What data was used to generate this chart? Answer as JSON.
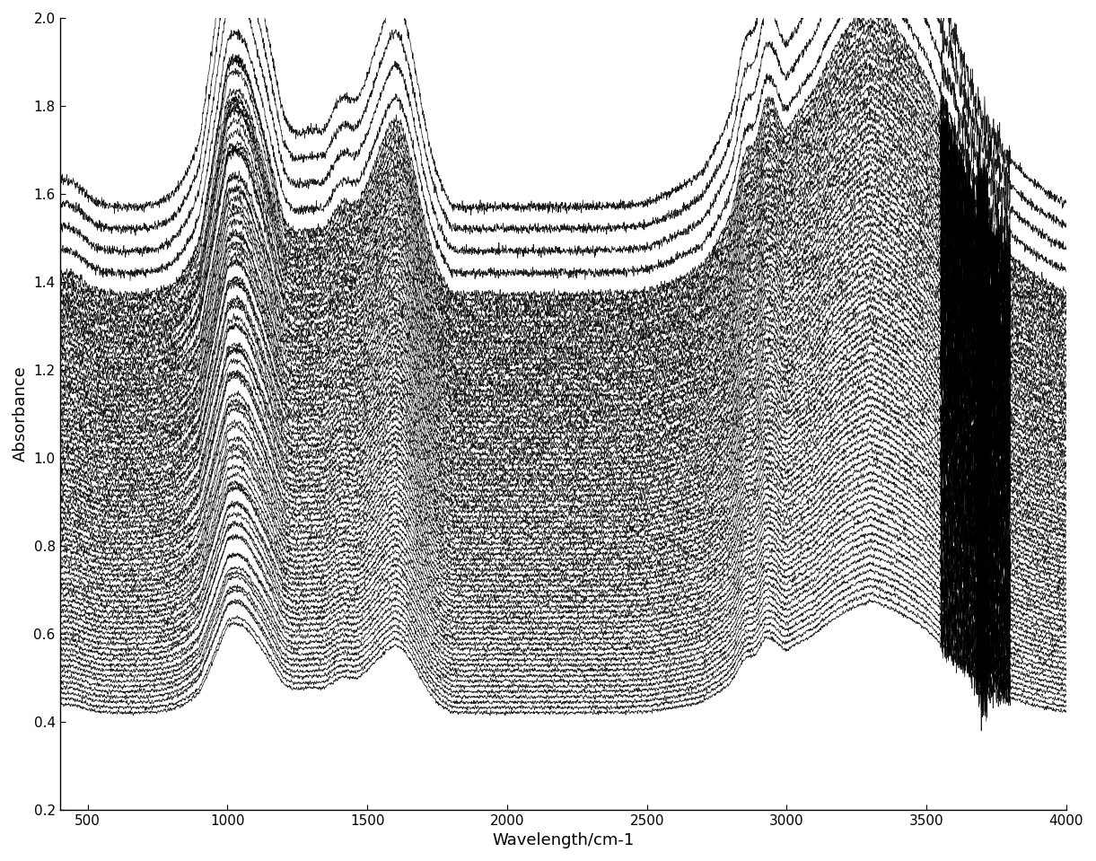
{
  "title": "",
  "xlabel": "Wavelength/cm-1",
  "ylabel": "Absorbance",
  "xlim": [
    400,
    4000
  ],
  "ylim": [
    0.2,
    2.0
  ],
  "xticks": [
    500,
    1000,
    1500,
    2000,
    2500,
    3000,
    3500,
    4000
  ],
  "yticks": [
    0.2,
    0.4,
    0.6,
    0.8,
    1.0,
    1.2,
    1.4,
    1.6,
    1.8,
    2.0
  ],
  "n_spectra": 80,
  "line_color": "#000000",
  "line_width": 0.5,
  "background_color": "#ffffff",
  "seed": 42,
  "xlabel_fontsize": 13,
  "ylabel_fontsize": 13,
  "tick_fontsize": 11
}
